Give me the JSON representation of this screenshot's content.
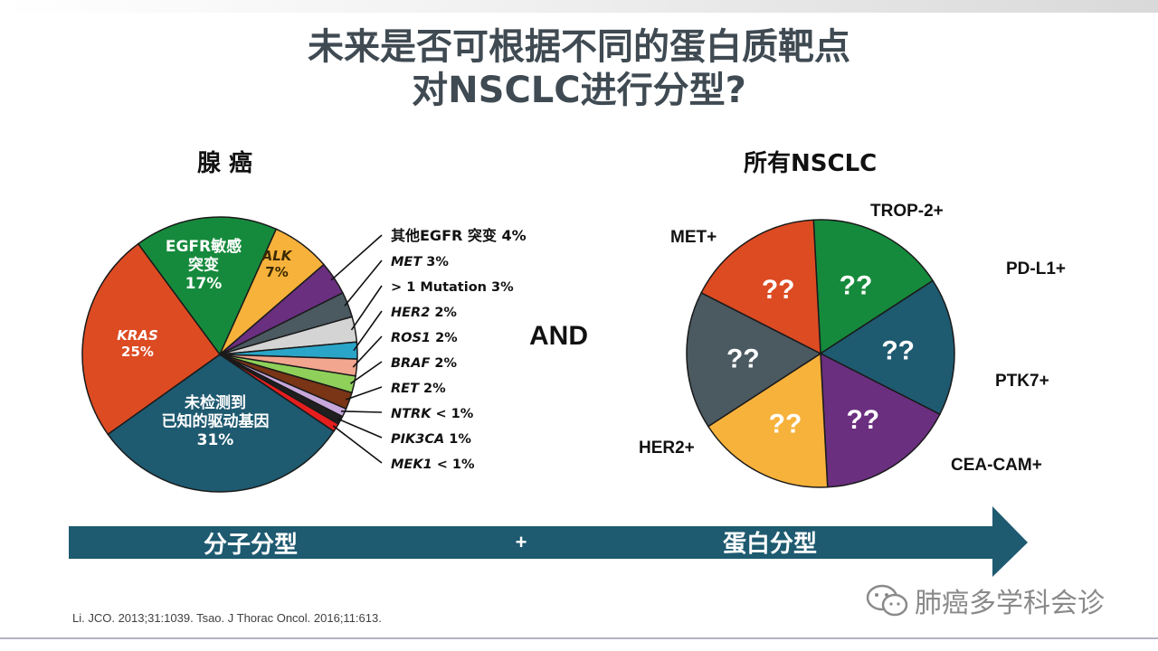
{
  "title_line1": "未来是否可根据不同的蛋白质靶点",
  "title_line2": "对NSCLC进行分型?",
  "left_heading": "腺 癌",
  "right_heading": "所有NSCLC",
  "and_label": "AND",
  "arrow": {
    "left_label": "分子分型",
    "plus": "+",
    "right_label": "蛋白分型",
    "color": "#1e5a70"
  },
  "reference": "Li. JCO. 2013;31:1039.  Tsao. J Thorac Oncol. 2016;11:613.",
  "watermark": {
    "text": "肺癌多学科会诊",
    "icon": "wechat-icon"
  },
  "chart_data": [
    {
      "type": "pie",
      "title": "腺 癌",
      "unit": "%",
      "slices": [
        {
          "label_lines": [
            "未检测到",
            "已知的驱动基因",
            "31%"
          ],
          "value": 31,
          "color": "#1e5a70",
          "label_mode": "inside"
        },
        {
          "label_lines": [
            "KRAS",
            "25%"
          ],
          "value": 25,
          "color": "#dd4b23",
          "label_mode": "inside",
          "italic_first": true
        },
        {
          "label_lines": [
            "EGFR敏感",
            "突变",
            "17%"
          ],
          "value": 17,
          "color": "#168a3c",
          "label_mode": "inside"
        },
        {
          "label_lines": [
            "ALK",
            "7%"
          ],
          "value": 7,
          "color": "#f7b23b",
          "label_mode": "inside",
          "italic_first": true,
          "text_color": "#3a2a00"
        },
        {
          "gene": "",
          "rest": "其他EGFR 突变 4%",
          "value": 4,
          "color": "#6a2f7f",
          "label_mode": "callout"
        },
        {
          "gene": "MET",
          "rest": " 3%",
          "value": 3,
          "color": "#4b5961",
          "label_mode": "callout"
        },
        {
          "gene": "",
          "rest": "> 1 Mutation 3%",
          "value": 3,
          "color": "#d4d4d4",
          "label_mode": "callout"
        },
        {
          "gene": "HER2",
          "rest": " 2%",
          "value": 2,
          "color": "#2aa5c8",
          "label_mode": "callout"
        },
        {
          "gene": "ROS1",
          "rest": " 2%",
          "value": 2,
          "color": "#f2a58f",
          "label_mode": "callout"
        },
        {
          "gene": "BRAF",
          "rest": " 2%",
          "value": 2,
          "color": "#8fd05a",
          "label_mode": "callout"
        },
        {
          "gene": "RET",
          "rest": " 2%",
          "value": 2,
          "color": "#7a3416",
          "label_mode": "callout"
        },
        {
          "gene": "NTRK",
          "rest": " < 1%",
          "value": 1,
          "color": "#c8a8dc",
          "label_mode": "callout"
        },
        {
          "gene": "PIK3CA",
          "rest": " 1%",
          "value": 1,
          "color": "#1f1f1f",
          "label_mode": "callout"
        },
        {
          "gene": "MEK1",
          "rest": " < 1%",
          "value": 1,
          "color": "#e61e1e",
          "label_mode": "callout"
        }
      ]
    },
    {
      "type": "pie",
      "title": "所有NSCLC",
      "slices": [
        {
          "label": "TROP-2+",
          "inner": "??",
          "value": 1,
          "color": "#168a3c"
        },
        {
          "label": "PD-L1+",
          "inner": "??",
          "value": 1,
          "color": "#1e5a70"
        },
        {
          "label": "PTK7+",
          "inner": "??",
          "value": 1,
          "color": "#6a2f7f"
        },
        {
          "label": "CEA-CAM+",
          "inner": "??",
          "value": 1,
          "color": "#f7b23b"
        },
        {
          "label": "HER2+",
          "inner": "??",
          "value": 1,
          "color": "#4b5961"
        },
        {
          "label": "MET+",
          "inner": "??",
          "value": 1,
          "color": "#dd4b23"
        }
      ]
    }
  ]
}
